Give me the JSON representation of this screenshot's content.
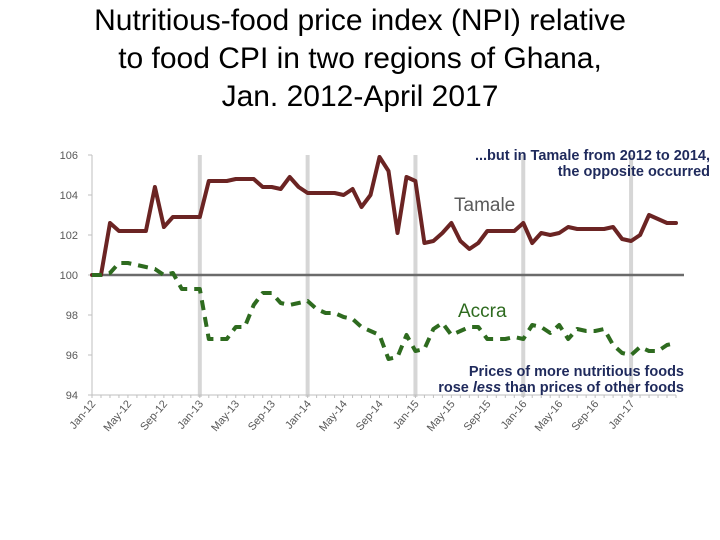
{
  "title_lines": [
    "Nutritious-food price index (NPI) relative",
    "to food CPI in two regions of Ghana,",
    "Jan. 2012-April 2017"
  ],
  "annotations": {
    "tamale_line1": "...but in Tamale from 2012 to 2014,",
    "tamale_line2": "the opposite occurred",
    "accra_before": "Prices of more nutritious foods",
    "accra_line2_pre": "rose ",
    "accra_line2_em": "less",
    "accra_line2_post": " than prices of other foods"
  },
  "colors": {
    "tamale": "#6b2423",
    "accra": "#2e6b1f",
    "baseline": "#6b6b6b",
    "january_lines": "#d6d6d6",
    "note_text": "#1f2a5c"
  },
  "chart_data": {
    "type": "line",
    "title": "",
    "xlabel": "",
    "ylabel": "",
    "ylim": [
      94,
      106
    ],
    "yticks": [
      94,
      96,
      98,
      100,
      102,
      104,
      106
    ],
    "xtick_labels": [
      "Jan-12",
      "May-12",
      "Sep-12",
      "Jan-13",
      "May-13",
      "Sep-13",
      "Jan-14",
      "May-14",
      "Sep-14",
      "Jan-15",
      "May-15",
      "Sep-15",
      "Jan-16",
      "May-16",
      "Sep-16",
      "Jan-17"
    ],
    "xtick_months": [
      0,
      4,
      8,
      12,
      16,
      20,
      24,
      28,
      32,
      36,
      40,
      44,
      48,
      52,
      56,
      60
    ],
    "january_gridlines": [
      12,
      24,
      36,
      48,
      60
    ],
    "baseline": 100,
    "series": [
      {
        "name": "Tamale",
        "style": "solid",
        "values": [
          100,
          100,
          102.6,
          102.2,
          102.2,
          102.2,
          102.2,
          104.4,
          102.4,
          102.9,
          102.9,
          102.9,
          102.9,
          104.7,
          104.7,
          104.7,
          104.8,
          104.8,
          104.8,
          104.4,
          104.4,
          104.3,
          104.9,
          104.4,
          104.1,
          104.1,
          104.1,
          104.1,
          104.0,
          104.3,
          103.4,
          104.0,
          105.9,
          105.2,
          102.1,
          104.9,
          104.7,
          101.6,
          101.7,
          102.1,
          102.6,
          101.7,
          101.3,
          101.6,
          102.2,
          102.2,
          102.2,
          102.2,
          102.6,
          101.6,
          102.1,
          102.0,
          102.1,
          102.4,
          102.3,
          102.3,
          102.3,
          102.3,
          102.4,
          101.8,
          101.7,
          102.0,
          103.0,
          102.8,
          102.6,
          102.6
        ]
      },
      {
        "name": "Accra",
        "style": "dashed",
        "values": [
          100,
          100,
          100.1,
          100.6,
          100.6,
          100.5,
          100.4,
          100.3,
          100.0,
          100.1,
          99.3,
          99.3,
          99.3,
          96.8,
          96.8,
          96.8,
          97.4,
          97.4,
          98.5,
          99.1,
          99.1,
          98.6,
          98.5,
          98.6,
          98.7,
          98.3,
          98.1,
          98.1,
          97.9,
          97.8,
          97.4,
          97.2,
          97.0,
          95.8,
          95.9,
          97.0,
          96.2,
          96.3,
          97.3,
          97.6,
          97.0,
          97.2,
          97.4,
          97.4,
          96.8,
          96.8,
          96.8,
          96.9,
          96.8,
          97.5,
          97.4,
          97.1,
          97.5,
          96.8,
          97.3,
          97.2,
          97.2,
          97.3,
          96.5,
          96.1,
          96.0,
          96.4,
          96.2,
          96.2,
          96.5,
          96.6
        ]
      }
    ]
  }
}
